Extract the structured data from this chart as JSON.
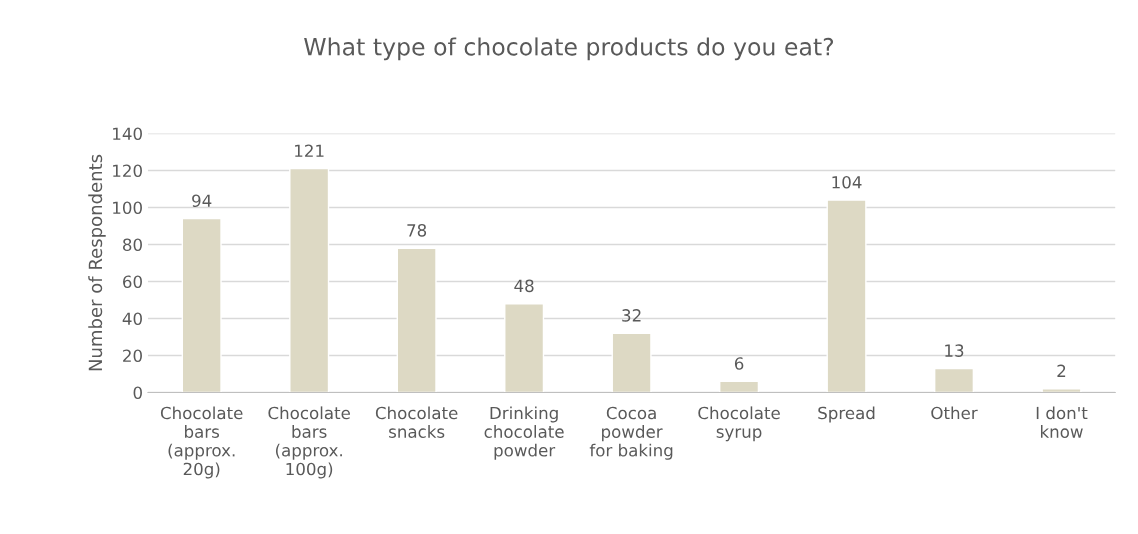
{
  "chart_data": {
    "type": "bar",
    "title": "What type of chocolate products do you eat?",
    "ylabel": "Number of Respondents",
    "categories": [
      "Chocolate\nbars\n(approx.\n20g)",
      "Chocolate\nbars\n(approx.\n100g)",
      "Chocolate\nsnacks",
      "Drinking\nchocolate\npowder",
      "Cocoa\npowder\nfor baking",
      "Chocolate\nsyrup",
      "Spread",
      "Other",
      "I don't\nknow"
    ],
    "values": [
      94,
      121,
      78,
      48,
      32,
      6,
      104,
      13,
      2
    ],
    "color": "#ddd9c4",
    "ylim": [
      0,
      140
    ],
    "yticks": [
      0,
      20,
      40,
      60,
      80,
      100,
      120,
      140
    ],
    "grid": "y",
    "data_labels": true
  }
}
